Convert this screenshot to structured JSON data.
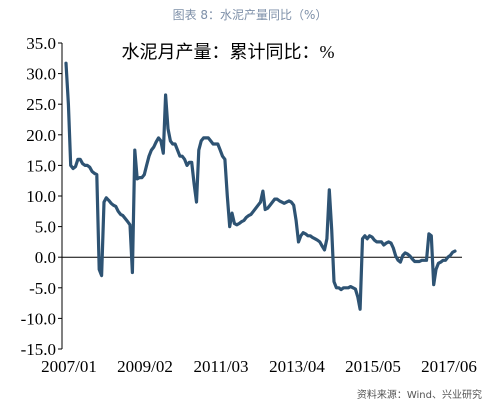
{
  "figure": {
    "caption": "图表 8：水泥产量同比（%）",
    "source": "资料来源：Wind、兴业研究"
  },
  "chart_data": {
    "type": "line",
    "title": "水泥月产量：累计同比：%",
    "xlabel": "",
    "ylabel": "",
    "ylim": [
      -15,
      35
    ],
    "y_ticks": [
      "35.0",
      "30.0",
      "25.0",
      "20.0",
      "15.0",
      "10.0",
      "5.0",
      "0.0",
      "-5.0",
      "-10.0",
      "-15.0"
    ],
    "x_ticks": [
      "2007/01",
      "2009/02",
      "2011/03",
      "2013/04",
      "2015/05",
      "2017/06"
    ],
    "grid": false,
    "line_color": "#2e5373",
    "series": [
      {
        "values": [
          31.7,
          25.0,
          15.0,
          14.5,
          14.8,
          16.0,
          16.0,
          15.3,
          15.0,
          15.0,
          14.7,
          14.0,
          13.7,
          13.5,
          -2.0,
          -3.0,
          9.0,
          9.7,
          9.3,
          8.8,
          8.5,
          8.3,
          7.5,
          7.0,
          6.8,
          6.3,
          5.8,
          5.3,
          -2.5,
          17.5,
          12.8,
          13.0,
          13.0,
          13.5,
          15.0,
          16.5,
          17.5,
          18.0,
          18.8,
          19.5,
          19.0,
          17.0,
          26.5,
          21.0,
          19.0,
          18.5,
          18.5,
          17.5,
          16.5,
          16.5,
          16.0,
          15.0,
          15.5,
          15.5,
          12.0,
          9.0,
          17.5,
          19.0,
          19.5,
          19.5,
          19.5,
          19.0,
          18.5,
          18.5,
          18.5,
          17.5,
          16.5,
          16.0,
          10.0,
          5.0,
          7.2,
          5.5,
          5.3,
          5.5,
          5.8,
          6.0,
          6.5,
          6.8,
          7.0,
          7.5,
          8.0,
          8.5,
          9.0,
          10.8,
          7.8,
          8.0,
          8.5,
          9.0,
          9.5,
          9.5,
          9.2,
          9.0,
          8.8,
          9.0,
          9.2,
          9.0,
          8.5,
          6.0,
          2.5,
          3.5,
          4.0,
          3.8,
          3.5,
          3.5,
          3.2,
          3.0,
          2.8,
          2.5,
          1.8,
          1.2,
          3.0,
          11.0,
          4.5,
          -4.0,
          -5.0,
          -5.0,
          -5.3,
          -5.0,
          -5.0,
          -5.0,
          -4.8,
          -5.0,
          -5.2,
          -6.5,
          -8.5,
          3.0,
          3.5,
          3.0,
          3.5,
          3.3,
          2.8,
          2.5,
          2.5,
          2.5,
          2.0,
          2.3,
          2.5,
          2.3,
          1.5,
          0.2,
          -0.5,
          -0.8,
          0.3,
          0.7,
          0.5,
          0.2,
          -0.3,
          -0.7,
          -0.7,
          -0.7,
          -0.5,
          -0.5,
          -0.5,
          3.8,
          3.5,
          -4.5,
          -2.0,
          -1.0,
          -0.8,
          -0.5,
          -0.5,
          0.0,
          0.3,
          0.8,
          1.0
        ]
      }
    ]
  }
}
